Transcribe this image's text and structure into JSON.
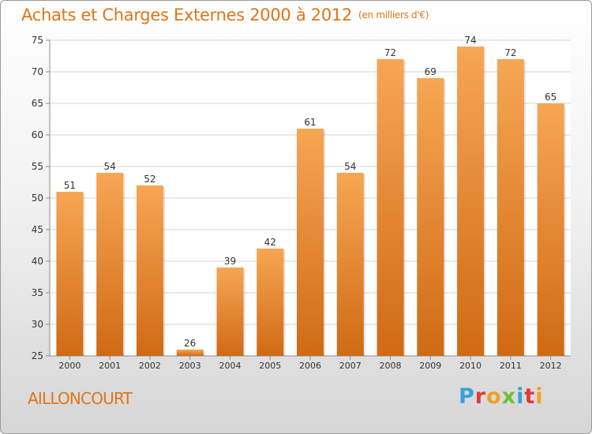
{
  "header": {
    "title": "Achats et Charges Externes 2000 à 2012",
    "subtitle": "(en milliers d'€)"
  },
  "footer": {
    "commune": "AILLONCOURT",
    "logo": {
      "text": "Proxiti",
      "colors": [
        "#3a9fe0",
        "#e23a3a",
        "#f0a020",
        "#6fbf3a",
        "#3a9fe0",
        "#e23a3a",
        "#f0a020"
      ]
    }
  },
  "colors": {
    "bar_light": "#f7a654",
    "bar_dark": "#d06a14",
    "title": "#e07518",
    "grid": "#d4d4d4"
  },
  "chart_data": {
    "type": "bar",
    "title": "Achats et Charges Externes 2000 à 2012",
    "categories": [
      "2000",
      "2001",
      "2002",
      "2003",
      "2004",
      "2005",
      "2006",
      "2007",
      "2008",
      "2009",
      "2010",
      "2011",
      "2012"
    ],
    "values": [
      51,
      54,
      52,
      26,
      39,
      42,
      61,
      54,
      72,
      69,
      74,
      72,
      65
    ],
    "ylim": [
      25,
      75
    ],
    "yticks": [
      25,
      30,
      35,
      40,
      45,
      50,
      55,
      60,
      65,
      70,
      75
    ],
    "grid": true,
    "data_labels": true
  }
}
